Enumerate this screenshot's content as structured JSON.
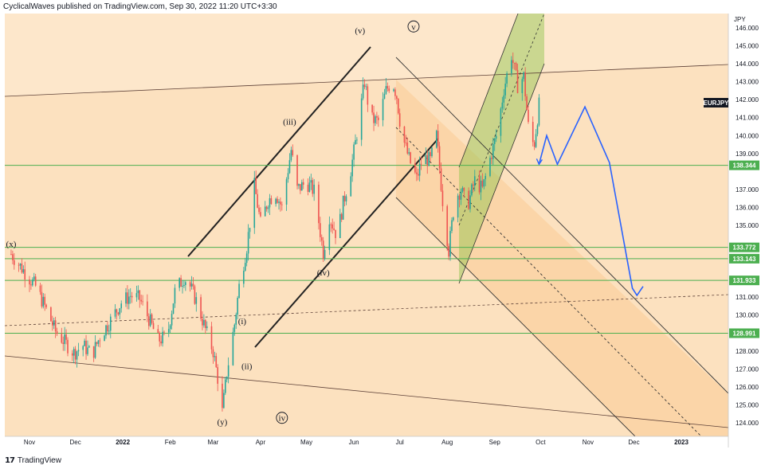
{
  "header": {
    "attribution": "CyclicalWaves published on TradingView.com, Sep 30, 2022 11:20 UTC+3:30"
  },
  "footer": {
    "brand": "TradingView",
    "logo_icon": "tradingview-logo-icon"
  },
  "chart_data": {
    "type": "candlestick",
    "symbol": "EURJPY",
    "currency": "JPY",
    "ylim": [
      123.2,
      146.4
    ],
    "x_ticks": [
      "Nov",
      "Dec",
      "2022",
      "Feb",
      "Mar",
      "Apr",
      "May",
      "Jun",
      "Jul",
      "Aug",
      "Sep",
      "Oct",
      "Nov",
      "Dec",
      "2023"
    ],
    "y_ticks": [
      "146.000",
      "145.000",
      "144.000",
      "143.000",
      "142.000",
      "141.000",
      "140.000",
      "139.000",
      "138.000",
      "137.000",
      "136.000",
      "135.000",
      "134.000",
      "133.000",
      "132.000",
      "131.000",
      "130.000",
      "129.000",
      "128.000",
      "127.000",
      "126.000",
      "125.000",
      "124.000"
    ],
    "price_levels": [
      {
        "value": 138.344,
        "label": "138.344"
      },
      {
        "value": 133.772,
        "label": "133.772"
      },
      {
        "value": 133.143,
        "label": "133.143"
      },
      {
        "value": 131.933,
        "label": "131.933"
      },
      {
        "value": 128.991,
        "label": "128.991"
      }
    ],
    "last_price_label": "EURJPY",
    "level_color": "#4caf50",
    "up_color": "#26a69a",
    "down_color": "#ef5350",
    "forecast_color": "#2962ff",
    "wave_labels": [
      {
        "text": "(v)",
        "date": "2022-06-05",
        "price": 145.7
      },
      {
        "text": "(iii)",
        "date": "2022-04-20",
        "price": 140.6
      },
      {
        "text": "(iv)",
        "date": "2022-05-12",
        "price": 132.2
      },
      {
        "text": "(i)",
        "date": "2022-03-20",
        "price": 129.5
      },
      {
        "text": "(ii)",
        "date": "2022-03-23",
        "price": 127.0
      },
      {
        "text": "(y)",
        "date": "2022-03-07",
        "price": 123.9
      },
      {
        "text": "(x)",
        "date": "2021-10-20",
        "price": 133.8
      },
      {
        "text": "v",
        "date": "2022-07-10",
        "price": 145.9,
        "circled": true
      },
      {
        "text": "iv",
        "date": "2022-04-15",
        "price": 124.1,
        "circled": true
      }
    ],
    "price_path": [
      [
        "2021-10-20",
        133.4
      ],
      [
        "2021-10-28",
        132.5
      ],
      [
        "2021-11-05",
        131.6
      ],
      [
        "2021-11-12",
        130.3
      ],
      [
        "2021-11-18",
        129.1
      ],
      [
        "2021-11-24",
        128.5
      ],
      [
        "2021-11-30",
        127.9
      ],
      [
        "2021-12-06",
        128.3
      ],
      [
        "2021-12-12",
        127.8
      ],
      [
        "2021-12-17",
        128.8
      ],
      [
        "2021-12-24",
        129.7
      ],
      [
        "2021-12-31",
        130.7
      ],
      [
        "2022-01-06",
        131.1
      ],
      [
        "2022-01-12",
        130.9
      ],
      [
        "2022-01-18",
        129.8
      ],
      [
        "2022-01-24",
        128.6
      ],
      [
        "2022-01-30",
        128.8
      ],
      [
        "2022-02-04",
        131.3
      ],
      [
        "2022-02-10",
        132.1
      ],
      [
        "2022-02-14",
        131.6
      ],
      [
        "2022-02-18",
        130.8
      ],
      [
        "2022-02-24",
        129.2
      ],
      [
        "2022-03-01",
        128.0
      ],
      [
        "2022-03-04",
        126.5
      ],
      [
        "2022-03-07",
        124.6
      ],
      [
        "2022-03-10",
        126.8
      ],
      [
        "2022-03-15",
        129.5
      ],
      [
        "2022-03-18",
        131.6
      ],
      [
        "2022-03-23",
        133.8
      ],
      [
        "2022-03-28",
        137.2
      ],
      [
        "2022-04-01",
        135.1
      ],
      [
        "2022-04-06",
        136.4
      ],
      [
        "2022-04-11",
        136.8
      ],
      [
        "2022-04-15",
        136.0
      ],
      [
        "2022-04-21",
        139.2
      ],
      [
        "2022-04-25",
        137.0
      ],
      [
        "2022-05-01",
        137.4
      ],
      [
        "2022-05-06",
        136.9
      ],
      [
        "2022-05-12",
        133.5
      ],
      [
        "2022-05-16",
        135.5
      ],
      [
        "2022-05-21",
        134.4
      ],
      [
        "2022-05-25",
        136.2
      ],
      [
        "2022-05-30",
        138.1
      ],
      [
        "2022-06-03",
        140.1
      ],
      [
        "2022-06-08",
        143.0
      ],
      [
        "2022-06-12",
        140.9
      ],
      [
        "2022-06-17",
        140.8
      ],
      [
        "2022-06-22",
        142.5
      ],
      [
        "2022-06-26",
        143.1
      ],
      [
        "2022-06-29",
        142.2
      ],
      [
        "2022-07-02",
        140.2
      ],
      [
        "2022-07-07",
        138.7
      ],
      [
        "2022-07-12",
        137.6
      ],
      [
        "2022-07-16",
        138.8
      ],
      [
        "2022-07-21",
        138.6
      ],
      [
        "2022-07-25",
        140.0
      ],
      [
        "2022-07-29",
        136.4
      ],
      [
        "2022-08-02",
        133.6
      ],
      [
        "2022-08-06",
        136.5
      ],
      [
        "2022-08-10",
        137.0
      ],
      [
        "2022-08-14",
        136.0
      ],
      [
        "2022-08-19",
        137.5
      ],
      [
        "2022-08-24",
        137.0
      ],
      [
        "2022-08-29",
        138.7
      ],
      [
        "2022-09-03",
        140.3
      ],
      [
        "2022-09-07",
        142.6
      ],
      [
        "2022-09-12",
        144.5
      ],
      [
        "2022-09-16",
        142.8
      ],
      [
        "2022-09-20",
        143.3
      ],
      [
        "2022-09-24",
        139.6
      ],
      [
        "2022-09-27",
        139.6
      ],
      [
        "2022-09-30",
        141.7
      ]
    ],
    "forecast_path": [
      [
        "2022-09-30",
        138.4
      ],
      [
        "2022-10-05",
        140.0
      ],
      [
        "2022-10-12",
        138.4
      ],
      [
        "2022-10-30",
        141.6
      ],
      [
        "2022-11-15",
        138.5
      ],
      [
        "2022-11-30",
        131.5
      ],
      [
        "2022-12-03",
        131.1
      ],
      [
        "2022-12-07",
        131.6
      ]
    ]
  }
}
